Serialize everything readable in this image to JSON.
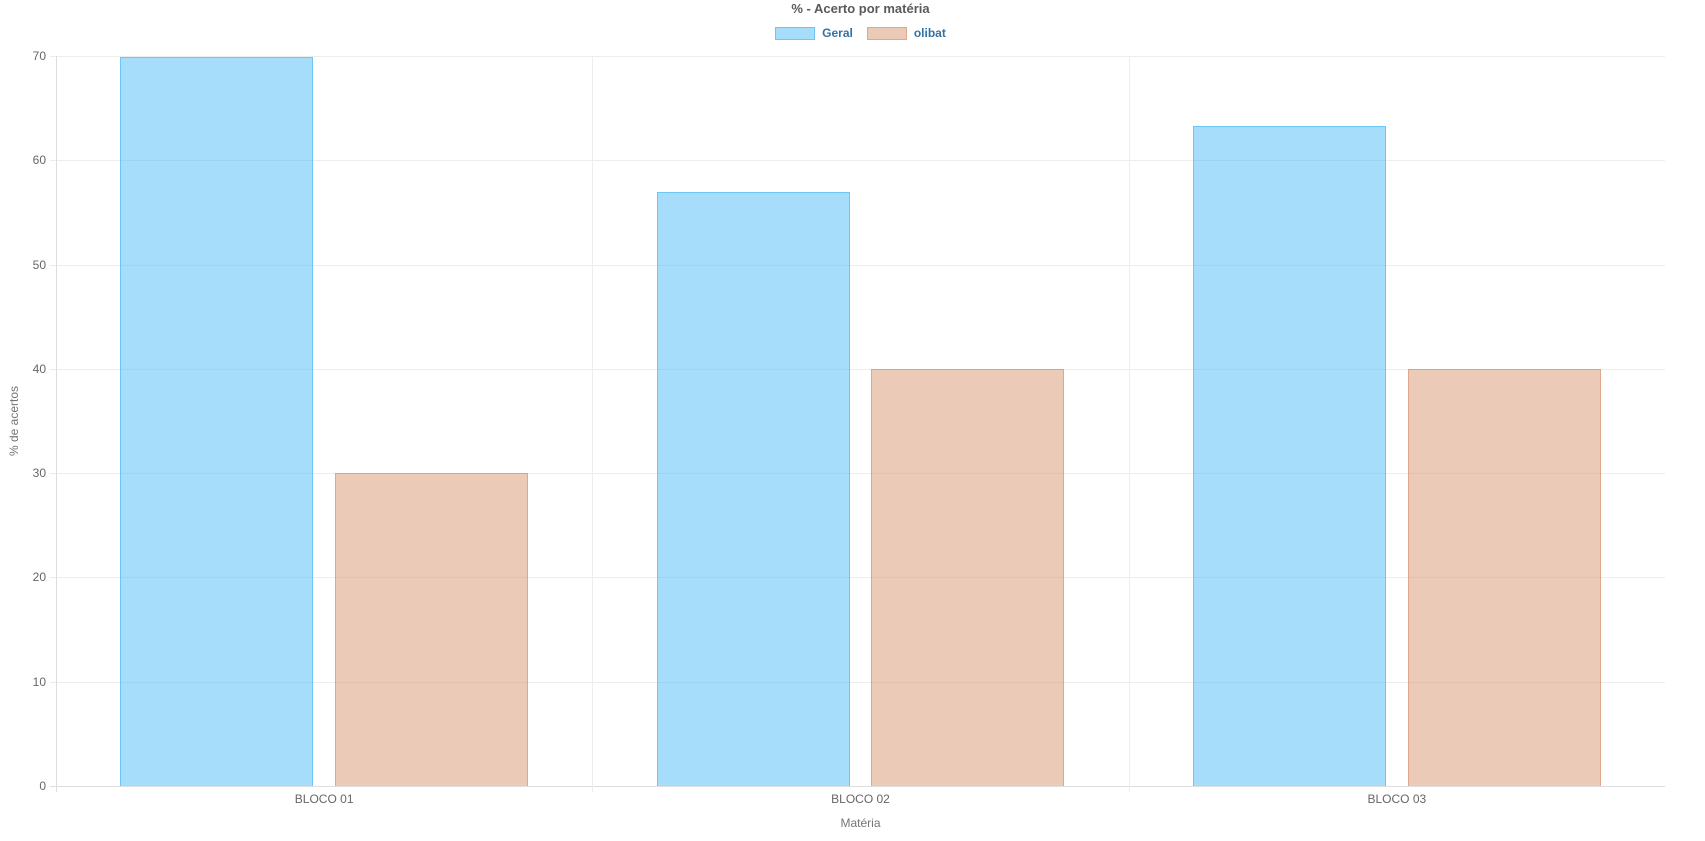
{
  "chart_data": {
    "type": "bar",
    "title": "% - Acerto por matéria",
    "xlabel": "Matéria",
    "ylabel": "% de acertos",
    "categories": [
      "BLOCO 01",
      "BLOCO 02",
      "BLOCO 03"
    ],
    "series": [
      {
        "name": "Geral",
        "values": [
          69.9,
          57,
          63.3
        ],
        "fill": "rgba(77,187,245,0.5)",
        "border": "rgba(77,187,245,0.65)"
      },
      {
        "name": "olibat",
        "values": [
          30,
          40,
          40
        ],
        "fill": "rgba(217,149,113,0.5)",
        "border": "rgba(217,149,113,0.65)"
      }
    ],
    "ylim": [
      0,
      70
    ],
    "yticks": [
      0,
      10,
      20,
      30,
      40,
      50,
      60,
      70
    ],
    "grid": true,
    "legend_position": "top",
    "colors": {
      "title": "#5a5a5a",
      "legend_text": "#3273a6",
      "tick": "#666666",
      "axis_title": "#757575",
      "grid": "#ededed",
      "axis_line": "#dedede"
    }
  }
}
